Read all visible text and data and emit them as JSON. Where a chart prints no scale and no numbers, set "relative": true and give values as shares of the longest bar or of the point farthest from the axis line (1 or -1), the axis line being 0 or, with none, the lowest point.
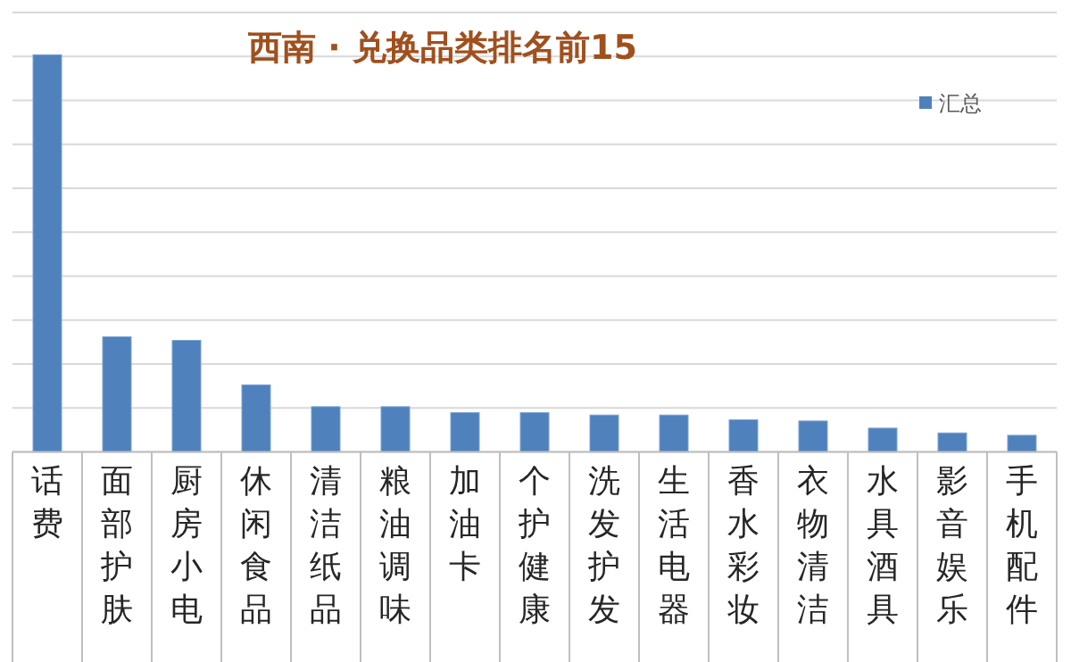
{
  "chart_data": {
    "type": "bar",
    "title": "西南 · 兑换品类排名前15",
    "relative": true,
    "grid": true,
    "legend": "top right",
    "categories": [
      "话费",
      "面部护肤",
      "厨房小电",
      "休闲食品",
      "清洁纸品",
      "粮油调味",
      "加油卡",
      "个护健康",
      "洗发护发",
      "生活电器",
      "香水彩妆",
      "衣物清洁",
      "水具酒具",
      "影音娱乐",
      "手机配件"
    ],
    "series": [
      {
        "name": "汇总",
        "color": "#4f81bd",
        "values": [
          1,
          0.29,
          0.281,
          0.169,
          0.114,
          0.114,
          0.099,
          0.099,
          0.093,
          0.093,
          0.081,
          0.078,
          0.06,
          0.048,
          0.042
        ]
      }
    ]
  }
}
